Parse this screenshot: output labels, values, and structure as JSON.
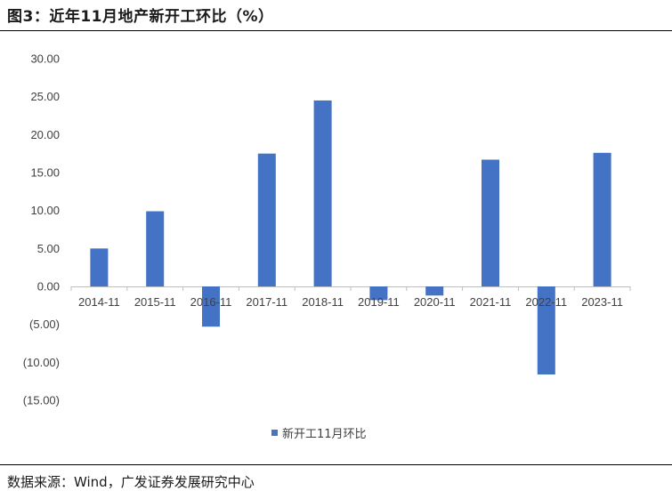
{
  "header": {
    "title": "图3：近年11月地产新开工环比（%）"
  },
  "footer": {
    "source": "数据来源：Wind，广发证券发展研究中心"
  },
  "colors": {
    "bar": "#4472C4",
    "axis": "#BFBFBF",
    "text": "#404040"
  },
  "chart_data": {
    "type": "bar",
    "title": "",
    "xlabel": "",
    "ylabel": "",
    "categories": [
      "2014-11",
      "2015-11",
      "2016-11",
      "2017-11",
      "2018-11",
      "2019-11",
      "2020-11",
      "2021-11",
      "2022-11",
      "2023-11"
    ],
    "series": [
      {
        "name": "新开工11月环比",
        "values": [
          5.0,
          9.9,
          -5.3,
          17.5,
          24.5,
          -1.8,
          -1.2,
          16.7,
          -11.6,
          17.6
        ]
      }
    ],
    "ylim": [
      -15,
      30
    ],
    "yticks": [
      30,
      25,
      20,
      15,
      10,
      5,
      0,
      -5,
      -10,
      -15
    ],
    "ytick_labels": [
      "30.00",
      "25.00",
      "20.00",
      "15.00",
      "10.00",
      "5.00",
      "0.00",
      "(5.00)",
      "(10.00)",
      "(15.00)"
    ],
    "grid": false,
    "legend_position": "bottom"
  }
}
